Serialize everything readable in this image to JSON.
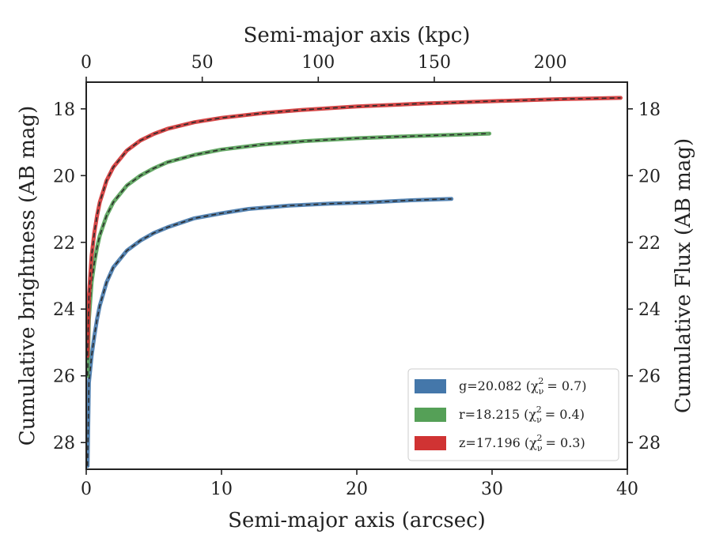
{
  "chart_data": {
    "type": "line",
    "xlabel": "Semi-major axis (arcsec)",
    "ylabel": "Cumulative brightness (AB mag)",
    "x2label": "Semi-major axis (kpc)",
    "y2label": "Cumulative Flux (AB mag)",
    "xlim": [
      0,
      40
    ],
    "ylim": [
      28.8,
      17.2
    ],
    "y_inverted": true,
    "x_ticks": [
      "0",
      "10",
      "20",
      "30",
      "40"
    ],
    "y_ticks": [
      "18",
      "20",
      "22",
      "24",
      "26",
      "28"
    ],
    "x2_ticks": [
      "0",
      "50",
      "100",
      "150",
      "200"
    ],
    "x2_tick_values": [
      0,
      50,
      100,
      150,
      200
    ],
    "x2_kpc_per_arcsec": 5.83,
    "grid": false,
    "legend_position": "lower-right",
    "series": [
      {
        "name": "g=20.082 (χ²ᵥ = 0.7)",
        "label": "g=20.082",
        "chi_label": "(χ",
        "chi_sub": "ν",
        "chi_sup": "2",
        "chi_value": "= 0.7)",
        "color": "#4477aa",
        "x": [
          0.1,
          0.2,
          0.4,
          0.6,
          0.8,
          1,
          1.5,
          2,
          3,
          4,
          5,
          6,
          8,
          10,
          12,
          15,
          18,
          21,
          24,
          27
        ],
        "y": [
          28.7,
          26.2,
          25.4,
          24.8,
          24.3,
          23.9,
          23.2,
          22.75,
          22.25,
          21.95,
          21.72,
          21.55,
          21.28,
          21.13,
          21.0,
          20.9,
          20.84,
          20.8,
          20.74,
          20.7
        ]
      },
      {
        "name": "r=18.215 (χ²ᵥ = 0.4)",
        "label": "r=18.215",
        "chi_label": "(χ",
        "chi_sub": "ν",
        "chi_sup": "2",
        "chi_value": "= 0.4)",
        "color": "#55a057",
        "x": [
          0.1,
          0.2,
          0.4,
          0.6,
          0.8,
          1,
          1.5,
          2,
          3,
          4,
          5,
          6,
          8,
          10,
          13,
          16,
          20,
          24,
          27,
          29.8
        ],
        "y": [
          26.0,
          24.3,
          23.2,
          22.6,
          22.15,
          21.8,
          21.2,
          20.8,
          20.3,
          20.0,
          19.78,
          19.6,
          19.38,
          19.22,
          19.07,
          18.97,
          18.88,
          18.82,
          18.78,
          18.74
        ]
      },
      {
        "name": "z=17.196 (χ²ᵥ = 0.3)",
        "label": "z=17.196",
        "chi_label": "(χ",
        "chi_sub": "ν",
        "chi_sup": "2",
        "chi_value": "= 0.3)",
        "color": "#d03333",
        "x": [
          0.1,
          0.2,
          0.4,
          0.6,
          0.8,
          1,
          1.5,
          2,
          3,
          4,
          5,
          6,
          8,
          10,
          13,
          16,
          20,
          25,
          30,
          35,
          39.5
        ],
        "y": [
          25.4,
          23.6,
          22.4,
          21.7,
          21.2,
          20.8,
          20.15,
          19.75,
          19.25,
          18.95,
          18.75,
          18.6,
          18.4,
          18.27,
          18.13,
          18.03,
          17.93,
          17.84,
          17.77,
          17.71,
          17.67
        ]
      }
    ]
  }
}
